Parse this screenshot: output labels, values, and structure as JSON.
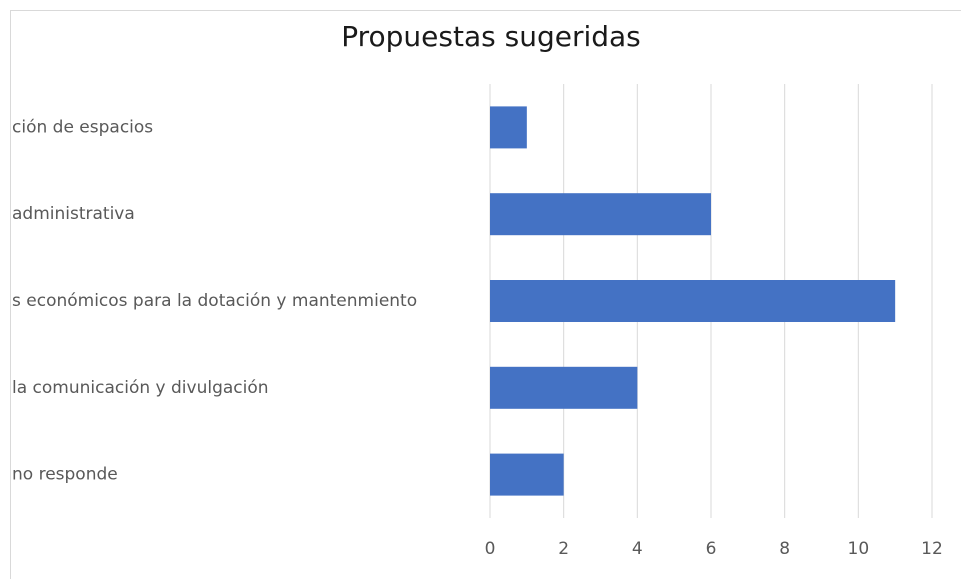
{
  "chart_data": {
    "type": "bar",
    "orientation": "horizontal",
    "title": "Propuestas sugeridas",
    "categories": [
      "ción de espacios",
      "administrativa",
      "s económicos para la dotación y mantenmiento",
      "la comunicación y divulgación",
      "no responde"
    ],
    "values": [
      1,
      6,
      11,
      4,
      2
    ],
    "color": "#4472c4",
    "xlim": [
      0,
      12
    ],
    "xticks": [
      0,
      2,
      4,
      6,
      8,
      10,
      12
    ],
    "grid": true
  }
}
